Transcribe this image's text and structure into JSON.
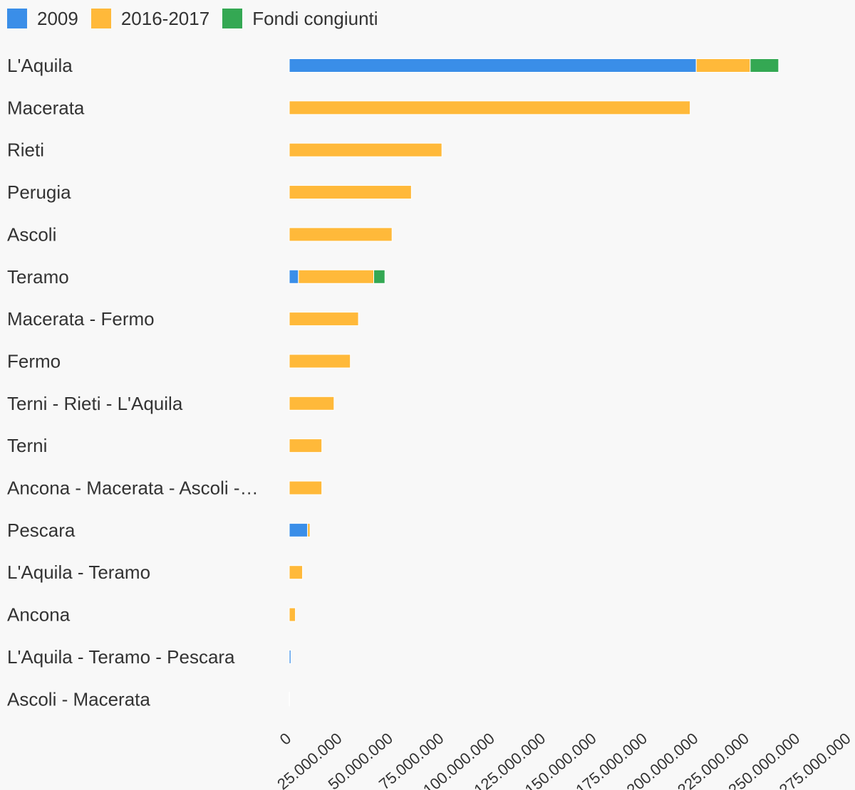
{
  "chart_data": {
    "type": "bar",
    "orientation": "horizontal",
    "stacked": true,
    "categories": [
      "L'Aquila",
      "Macerata",
      "Rieti",
      "Perugia",
      "Ascoli",
      "Teramo",
      "Macerata - Fermo",
      "Fermo",
      "Terni - Rieti - L'Aquila",
      "Terni",
      "Ancona - Macerata - Ascoli -…",
      "Pescara",
      "L'Aquila - Teramo",
      "Ancona",
      "L'Aquila - Teramo - Pescara",
      "Ascoli - Macerata"
    ],
    "series": [
      {
        "name": "2009",
        "color": "#3a8ee8",
        "values": [
          200000000,
          0,
          0,
          0,
          0,
          4500000,
          0,
          0,
          0,
          0,
          0,
          9000000,
          0,
          0,
          800000,
          0
        ]
      },
      {
        "name": "2016-2017",
        "color": "#ffb93a",
        "values": [
          26500000,
          197000000,
          75000000,
          60000000,
          50500000,
          37000000,
          34000000,
          30000000,
          22000000,
          16000000,
          16000000,
          1200000,
          6500000,
          3000000,
          0,
          200000
        ]
      },
      {
        "name": "Fondi congiunti",
        "color": "#34a853",
        "values": [
          14000000,
          0,
          0,
          0,
          0,
          5500000,
          0,
          0,
          0,
          0,
          0,
          0,
          0,
          0,
          0,
          0
        ]
      }
    ],
    "xlim": [
      0,
      275000000
    ],
    "xticks": [
      {
        "value": 0,
        "label": "0"
      },
      {
        "value": 25000000,
        "label": "25.000.000"
      },
      {
        "value": 50000000,
        "label": "50.000.000"
      },
      {
        "value": 75000000,
        "label": "75.000.000"
      },
      {
        "value": 100000000,
        "label": "100.000.000"
      },
      {
        "value": 125000000,
        "label": "125.000.000"
      },
      {
        "value": 150000000,
        "label": "150.000.000"
      },
      {
        "value": 175000000,
        "label": "175.000.000"
      },
      {
        "value": 200000000,
        "label": "200.000.000"
      },
      {
        "value": 225000000,
        "label": "225.000.000"
      },
      {
        "value": 250000000,
        "label": "250.000.000"
      },
      {
        "value": 275000000,
        "label": "275.000.000"
      }
    ],
    "grid": false,
    "legend_position": "top-left",
    "title": "",
    "xlabel": "",
    "ylabel": ""
  }
}
